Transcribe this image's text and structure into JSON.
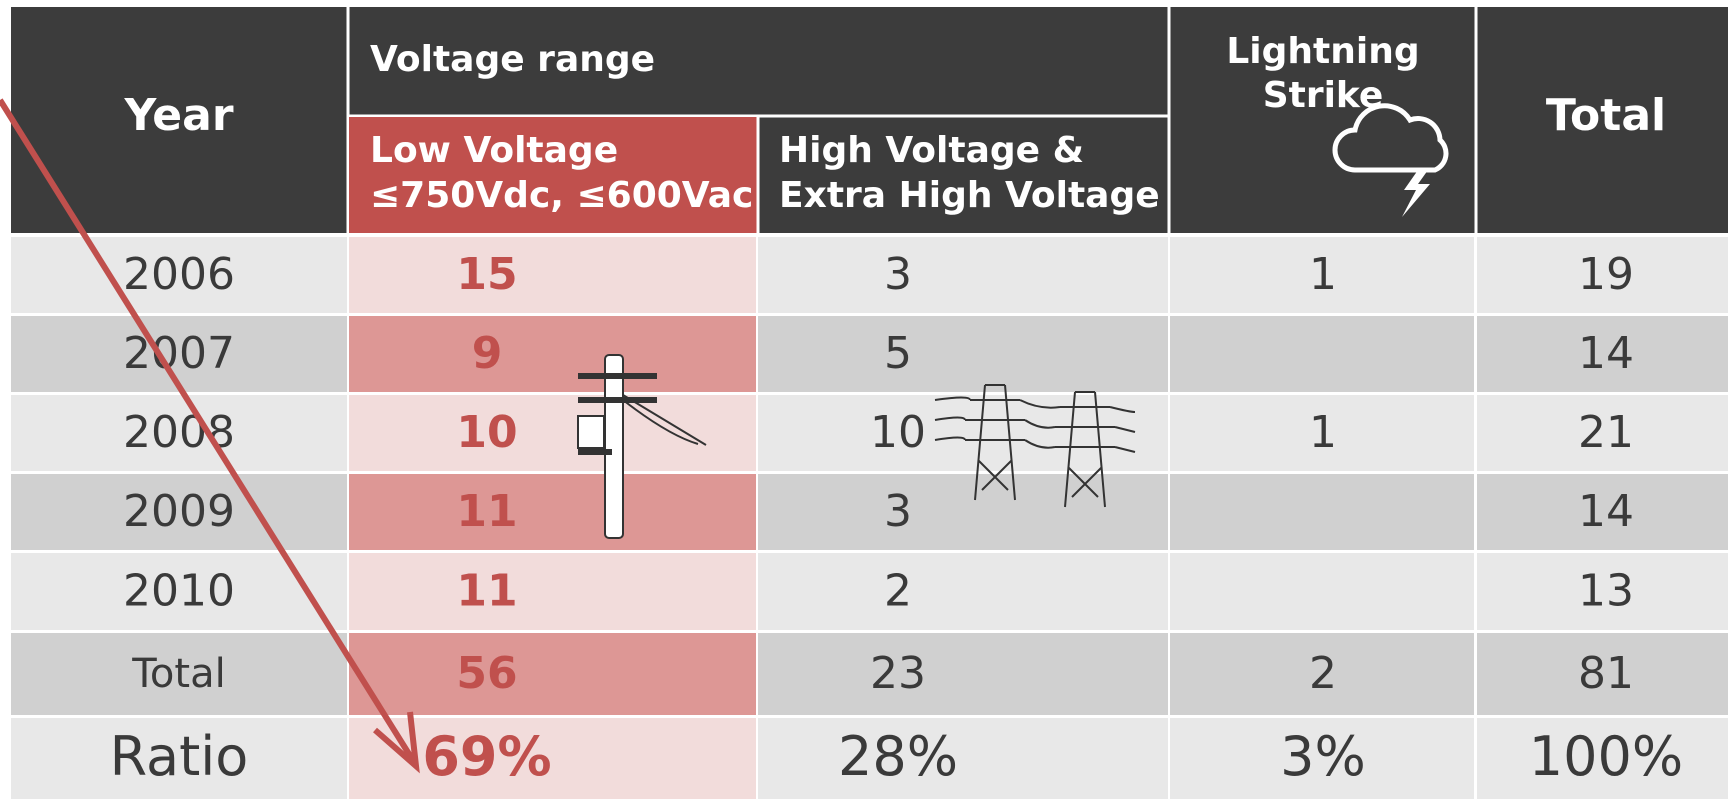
{
  "header": {
    "year": "Year",
    "voltage_range": "Voltage range",
    "low_voltage": [
      "Low Voltage",
      "≤750Vdc, ≤600Vac"
    ],
    "high_voltage": [
      "High Voltage &",
      "Extra High Voltage"
    ],
    "lightning": [
      "Lightning",
      "Strike"
    ],
    "total": "Total"
  },
  "table": {
    "rows": [
      [
        "2006",
        15,
        3,
        1,
        19
      ],
      [
        "2007",
        9,
        5,
        null,
        14
      ],
      [
        "2008",
        10,
        10,
        1,
        21
      ],
      [
        "2009",
        11,
        3,
        null,
        14
      ],
      [
        "2010",
        11,
        2,
        null,
        13
      ],
      [
        "Total",
        56,
        23,
        2,
        81
      ],
      [
        "Ratio",
        "69%",
        "28%",
        "3%",
        "100%"
      ]
    ]
  }
}
